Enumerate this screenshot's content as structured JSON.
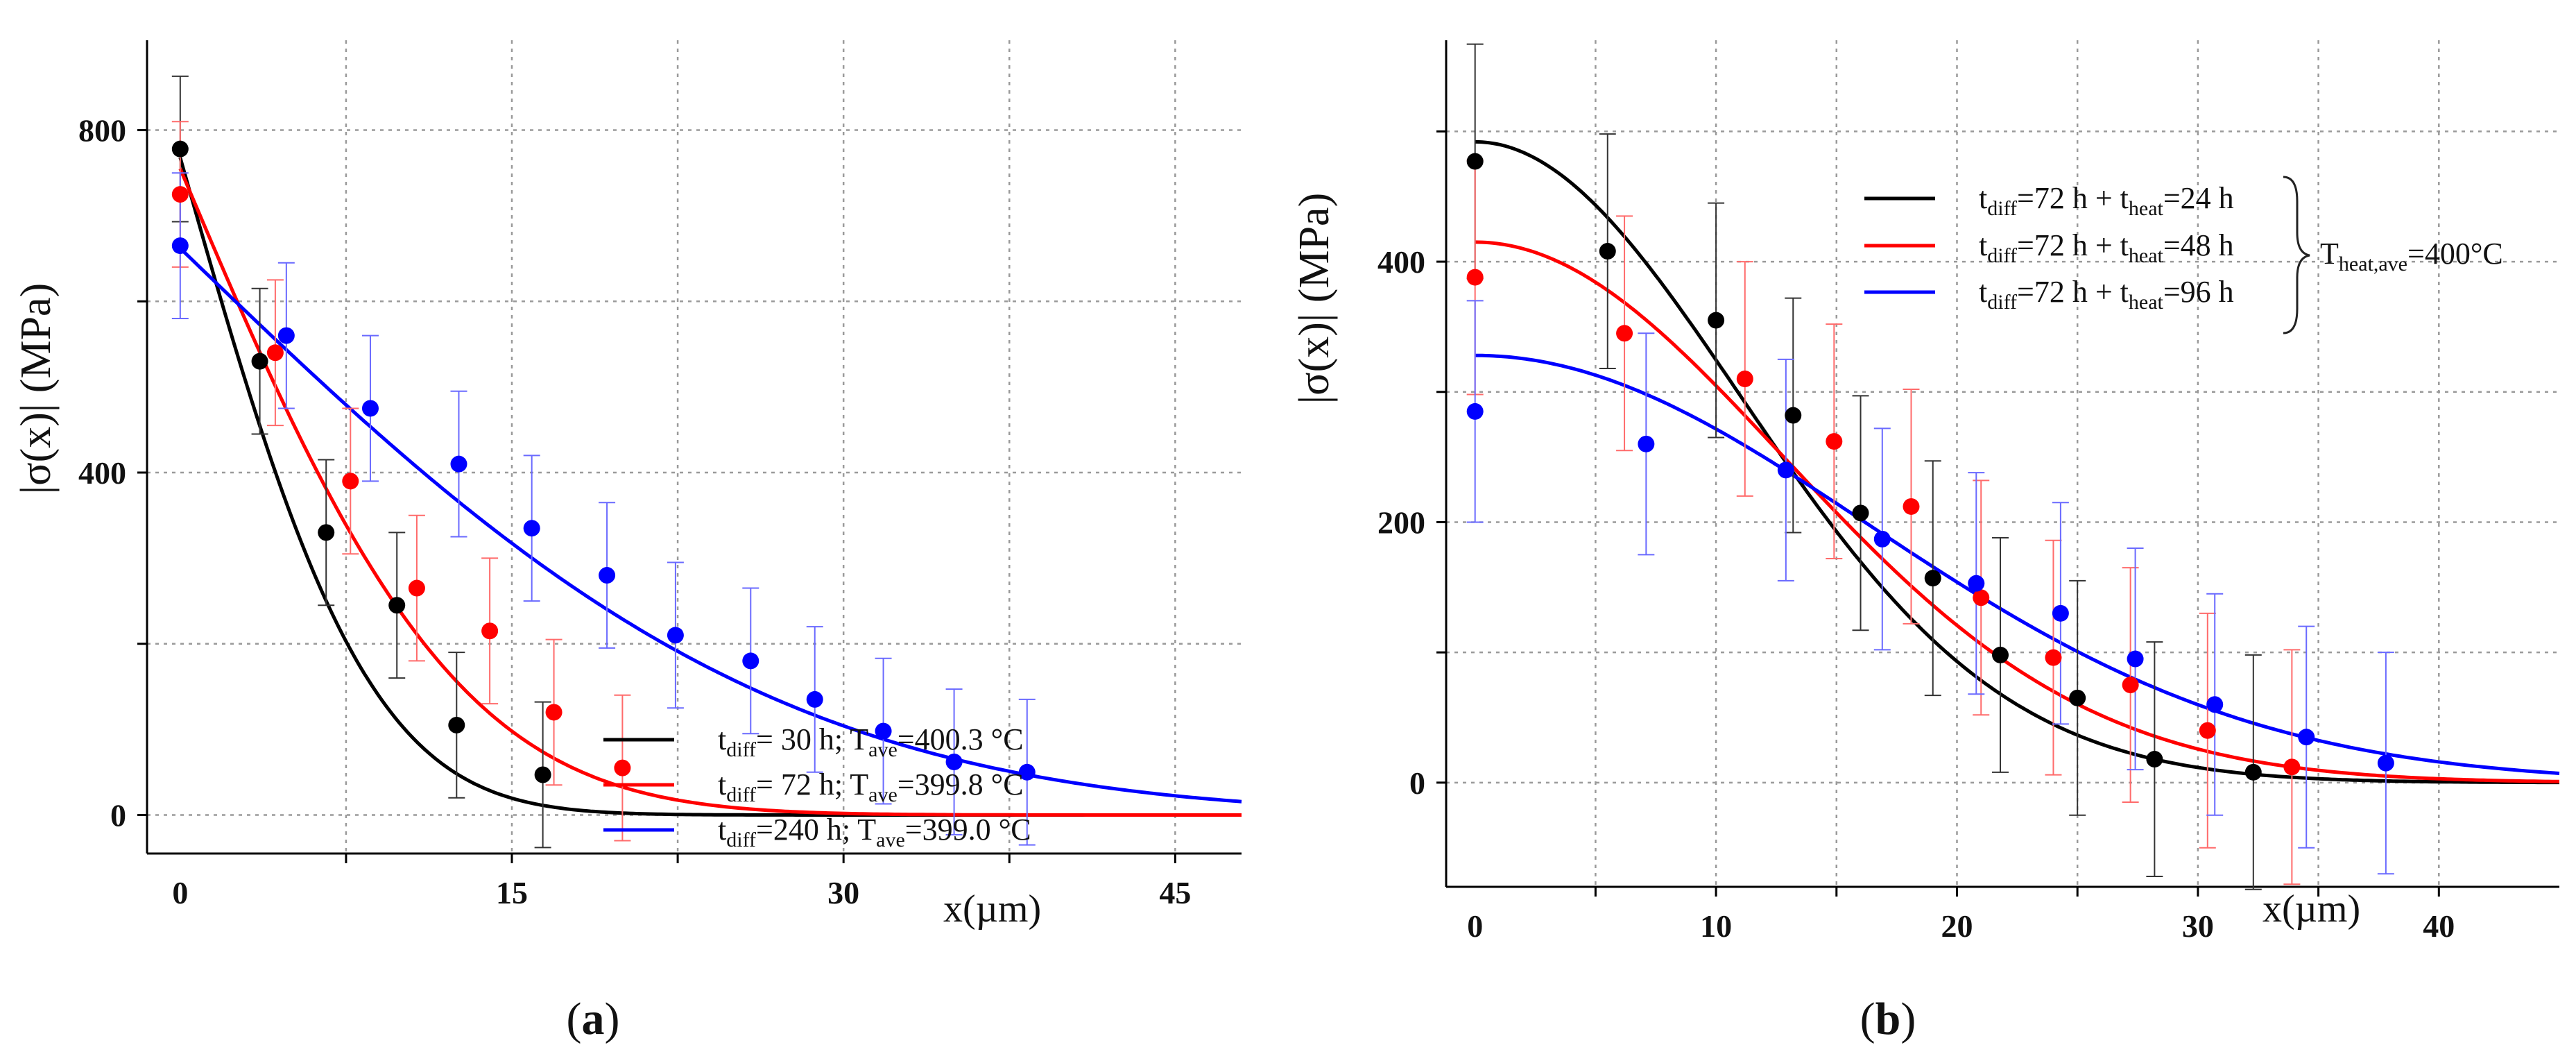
{
  "chart_data": [
    {
      "type": "scatter",
      "panel_label": "(a)",
      "xlabel": "x(µm)",
      "ylabel": "|σ(x)| (MPa)",
      "xlim": [
        -1.5,
        48
      ],
      "ylim": [
        -45,
        905
      ],
      "x_ticks": [
        0,
        15,
        30,
        45
      ],
      "y_ticks": [
        0,
        400,
        800
      ],
      "grid": true,
      "legend_position": "top-right",
      "series": [
        {
          "name": "black",
          "color": "#000000",
          "legend": {
            "t_value": "= 30 h;",
            "T_value": "=400.3 °C"
          },
          "x": [
            0,
            3.6,
            6.6,
            9.8,
            12.5,
            16.4
          ],
          "y": [
            778,
            530,
            330,
            245,
            105,
            47
          ],
          "err": [
            85,
            85,
            85,
            85,
            85,
            85
          ],
          "fit_amp": 768,
          "fit_shape": "erfc",
          "fit_scale": 9.5
        },
        {
          "name": "red",
          "color": "#ff0000",
          "legend": {
            "t_value": "= 72 h;",
            "T_value": "=399.8 °C"
          },
          "x": [
            0,
            4.3,
            7.7,
            10.7,
            14,
            16.9,
            20
          ],
          "y": [
            725,
            540,
            390,
            265,
            215,
            120,
            55
          ],
          "err": [
            85,
            85,
            85,
            85,
            85,
            85,
            85
          ],
          "fit_amp": 755,
          "fit_shape": "erfc",
          "fit_scale": 14
        },
        {
          "name": "blue",
          "color": "#0000ff",
          "legend": {
            "t_value": "=240 h;",
            "T_value": "=399.0 °C"
          },
          "x": [
            0,
            4.8,
            8.6,
            12.6,
            15.9,
            19.3,
            22.4,
            25.8,
            28.7,
            31.8,
            35,
            38.3
          ],
          "y": [
            665,
            560,
            475,
            410,
            335,
            280,
            210,
            180,
            135,
            98,
            62,
            50
          ],
          "err": [
            85,
            85,
            85,
            85,
            85,
            85,
            85,
            85,
            85,
            85,
            85,
            85
          ],
          "fit_amp": 662,
          "fit_shape": "erfc",
          "fit_scale": 30
        }
      ]
    },
    {
      "type": "scatter",
      "panel_label": "(b)",
      "xlabel": "x(µm)",
      "ylabel": "|σ(x)| (MPa)",
      "xlim": [
        -1.2,
        45
      ],
      "ylim": [
        -80,
        570
      ],
      "x_ticks": [
        0,
        10,
        20,
        30,
        40
      ],
      "y_ticks": [
        0,
        200,
        400
      ],
      "grid": true,
      "legend_position": "top-right",
      "legend_group_label": {
        "sub": "heat,ave",
        "value": "=400°C"
      },
      "series": [
        {
          "name": "black",
          "color": "#000000",
          "legend": {
            "diff_value": "=72 h +",
            "heat_value": "=24 h"
          },
          "x": [
            0,
            5.5,
            10,
            13.2,
            16,
            19,
            21.8,
            25,
            28.2,
            32.3
          ],
          "y": [
            477,
            408,
            355,
            282,
            207,
            157,
            98,
            65,
            18,
            8
          ],
          "err": [
            90,
            90,
            90,
            90,
            90,
            90,
            90,
            90,
            90,
            90
          ],
          "fit_amp": 492,
          "fit_shape": "gauss",
          "fit_scale": 15.5
        },
        {
          "name": "red",
          "color": "#ff0000",
          "legend": {
            "diff_value": "=72 h +",
            "heat_value": "=48 h"
          },
          "x": [
            0,
            6.2,
            11.2,
            14.9,
            18.1,
            21,
            24,
            27.2,
            30.4,
            33.9
          ],
          "y": [
            388,
            345,
            310,
            262,
            212,
            142,
            96,
            75,
            40,
            12
          ],
          "err": [
            90,
            90,
            90,
            90,
            90,
            90,
            90,
            90,
            90,
            90
          ],
          "fit_amp": 415,
          "fit_shape": "gauss",
          "fit_scale": 18
        },
        {
          "name": "blue",
          "color": "#0000ff",
          "legend": {
            "diff_value": "=72 h +",
            "heat_value": "=96 h"
          },
          "x": [
            0,
            7.1,
            12.9,
            16.9,
            20.8,
            24.3,
            27.4,
            30.7,
            34.5,
            37.8
          ],
          "y": [
            285,
            260,
            240,
            187,
            153,
            130,
            95,
            60,
            35,
            15
          ],
          "err": [
            85,
            85,
            85,
            85,
            85,
            85,
            85,
            85,
            85,
            85
          ],
          "fit_amp": 328,
          "fit_shape": "gauss",
          "fit_scale": 23
        }
      ]
    }
  ]
}
